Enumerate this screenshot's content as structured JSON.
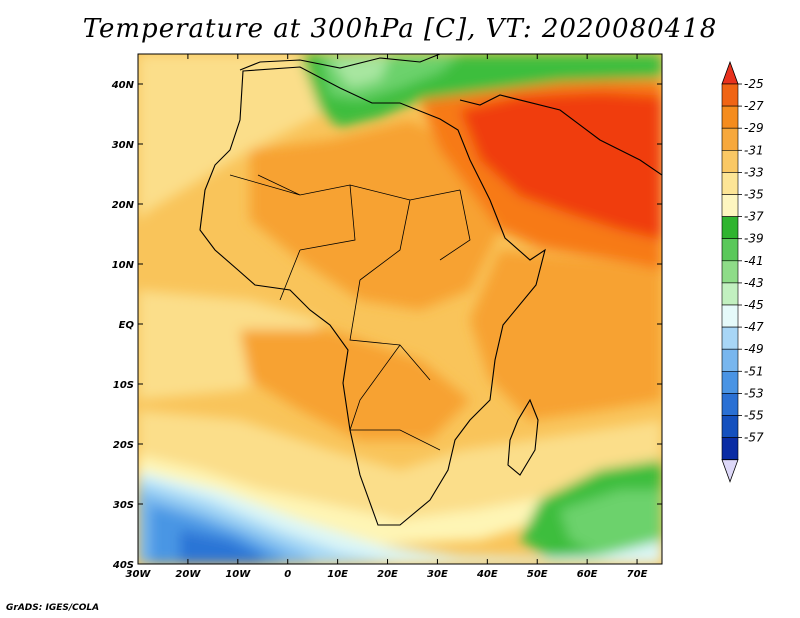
{
  "title": "Temperature at 300hPa [C], VT: 2020080418",
  "credit": "GrADS: IGES/COLA",
  "map": {
    "lon_range": [
      -30,
      75
    ],
    "lat_range": [
      -40,
      45
    ],
    "lat_ticks": [
      {
        "value": 40,
        "label": "40N"
      },
      {
        "value": 30,
        "label": "30N"
      },
      {
        "value": 20,
        "label": "20N"
      },
      {
        "value": 10,
        "label": "10N"
      },
      {
        "value": 0,
        "label": "EQ"
      },
      {
        "value": -10,
        "label": "10S"
      },
      {
        "value": -20,
        "label": "20S"
      },
      {
        "value": -30,
        "label": "30S"
      },
      {
        "value": -40,
        "label": "40S"
      }
    ],
    "lon_ticks": [
      {
        "value": -30,
        "label": "30W"
      },
      {
        "value": -20,
        "label": "20W"
      },
      {
        "value": -10,
        "label": "10W"
      },
      {
        "value": 0,
        "label": "0"
      },
      {
        "value": 10,
        "label": "10E"
      },
      {
        "value": 20,
        "label": "20E"
      },
      {
        "value": 30,
        "label": "30E"
      },
      {
        "value": 40,
        "label": "40E"
      },
      {
        "value": 50,
        "label": "50E"
      },
      {
        "value": 60,
        "label": "60E"
      },
      {
        "value": 70,
        "label": "70E"
      }
    ],
    "colors": {
      "t25": "#f03c0a",
      "t27": "#f77a14",
      "t29": "#f7a232",
      "t31": "#f9c45a",
      "t33": "#fbde8a",
      "t35": "#fef5b5",
      "t37": "#3cbe3c",
      "t39": "#6cd26c",
      "t41": "#a8e6a0",
      "t43": "#dcf6f6",
      "t45": "#a6d8f6",
      "t47": "#78b8ee",
      "t49": "#4a96e4",
      "t51": "#2a74d6"
    },
    "coastline_color": "#000000"
  },
  "colorbar": {
    "labels": [
      "-25",
      "-27",
      "-29",
      "-31",
      "-33",
      "-35",
      "-37",
      "-39",
      "-41",
      "-43",
      "-45",
      "-47",
      "-49",
      "-51",
      "-53",
      "-55",
      "-57"
    ],
    "colors": [
      "#e8321e",
      "#f06414",
      "#f58c1e",
      "#f7a83c",
      "#fac864",
      "#fde596",
      "#fef6c0",
      "#2fb42f",
      "#5ac85a",
      "#8edc88",
      "#c2f0c0",
      "#e6fafa",
      "#a8d6f6",
      "#78b6ee",
      "#4a94e4",
      "#2a70d4",
      "#1450be",
      "#0a2ca4",
      "#0a147a"
    ],
    "top_arrow_color": "#e8321e",
    "bottom_arrow_color": "#ddd8f8"
  }
}
